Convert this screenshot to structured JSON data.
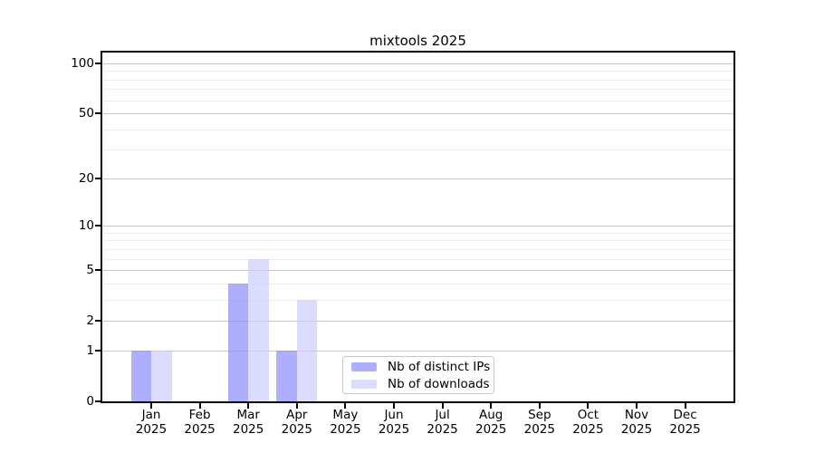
{
  "figure": {
    "title": "mixtools 2025"
  },
  "chart_data": {
    "type": "bar",
    "title": "mixtools 2025",
    "categories": [
      "Jan",
      "Feb",
      "Mar",
      "Apr",
      "May",
      "Jun",
      "Jul",
      "Aug",
      "Sep",
      "Oct",
      "Nov",
      "Dec"
    ],
    "x_sublabel": "2025",
    "series": [
      {
        "name": "Nb of distinct IPs",
        "color": "#8888ff",
        "values": [
          1,
          0,
          4,
          1,
          0,
          0,
          0,
          0,
          0,
          0,
          0,
          0
        ]
      },
      {
        "name": "Nb of downloads",
        "color": "#ccccff",
        "values": [
          1,
          0,
          6,
          3,
          0,
          0,
          0,
          0,
          0,
          0,
          0,
          0
        ]
      }
    ],
    "bar_alpha": 0.68,
    "yscale": "log10(1+y)",
    "yticks": [
      0,
      1,
      2,
      5,
      10,
      20,
      50,
      100
    ],
    "minor_gridlines": [
      3,
      4,
      6,
      7,
      8,
      9,
      30,
      40,
      60,
      70,
      80,
      90
    ],
    "ylim": [
      0,
      116
    ],
    "grid": true,
    "legend_position": "bottom-center"
  },
  "legend": {
    "items": [
      {
        "label": "Nb of distinct IPs"
      },
      {
        "label": "Nb of downloads"
      }
    ]
  },
  "colors": {
    "bar_ips": "#8888ff",
    "bar_downloads": "#ccccff",
    "bar_ips_apparent": "#aaaaf8",
    "bar_downloads_apparent": "#dcdcfb",
    "grid_major": "#c8c8c8",
    "grid_minor": "#ededed",
    "axis": "#000000",
    "legend_border": "#c8c8c8",
    "background": "#ffffff"
  }
}
